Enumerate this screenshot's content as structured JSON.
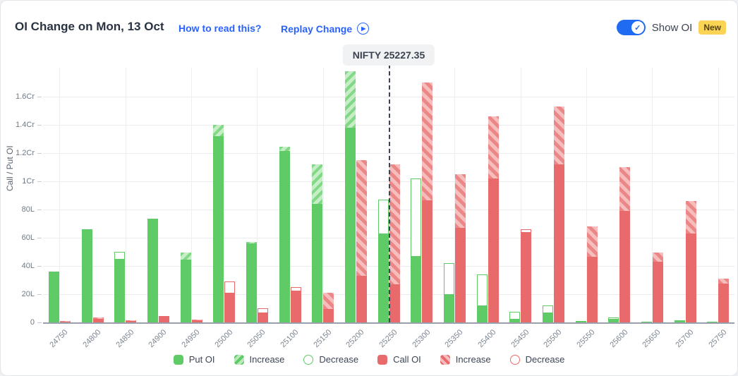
{
  "header": {
    "title": "OI Change on Mon, 13 Oct",
    "how_to_read_label": "How to read this?",
    "replay_label": "Replay Change",
    "play_icon": "play-circle",
    "show_oi_label": "Show OI",
    "show_oi_state": "on",
    "new_badge": "New"
  },
  "nifty_marker": {
    "label": "NIFTY 25227.35",
    "value": 25227.35
  },
  "chart_data": {
    "type": "bar",
    "title": "OI Change on Mon, 13 Oct",
    "ylabel": "Call / Put OI",
    "ytick_labels": [
      "0",
      "20L",
      "40L",
      "60L",
      "80L",
      "1Cr",
      "1.2Cr",
      "1.4Cr",
      "1.6Cr"
    ],
    "ytick_values_lakh": [
      0,
      20,
      40,
      60,
      80,
      100,
      120,
      140,
      160
    ],
    "ylim_lakh": [
      0,
      180
    ],
    "grid": true,
    "legend_position": "bottom",
    "value_unit": "lakh (L); 1Cr = 100L",
    "categories": [
      24750,
      24800,
      24850,
      24900,
      24950,
      25000,
      25050,
      25100,
      25150,
      25200,
      25250,
      25300,
      25350,
      25400,
      25450,
      25500,
      25550,
      25600,
      25650,
      25700,
      25750
    ],
    "series": [
      {
        "name": "Put OI (solid green, with hatched Increase / outlined Decrease tops)",
        "put_oi_lakh": [
          36,
          66,
          45,
          73.5,
          44.5,
          132,
          56,
          121.5,
          84,
          138,
          63,
          47,
          20,
          12,
          2.5,
          7,
          1.2,
          2.5,
          0.7,
          1.5,
          0.4
        ],
        "put_increase_lakh": [
          0,
          0,
          0,
          0,
          5,
          8,
          1,
          3,
          28,
          40,
          0,
          0,
          0,
          0,
          0,
          0,
          0,
          0,
          0,
          0,
          0
        ],
        "put_decrease_lakh": [
          0,
          0,
          5,
          0,
          0,
          0,
          0,
          0,
          0,
          0,
          24,
          55,
          22,
          22,
          5,
          5,
          0,
          1,
          0,
          0,
          0
        ]
      },
      {
        "name": "Call OI (solid red, with hatched Increase / outlined Decrease tops)",
        "call_oi_lakh": [
          0.7,
          2.5,
          1,
          4.5,
          1.5,
          21,
          7,
          22.5,
          9.5,
          33,
          27,
          86.5,
          67,
          102,
          64,
          112,
          46.5,
          79,
          43,
          63,
          27.5
        ],
        "call_increase_lakh": [
          0.5,
          1,
          0.5,
          0,
          0.5,
          0,
          0,
          0,
          11.5,
          82,
          85,
          83.5,
          38,
          44,
          0,
          41,
          21.5,
          31,
          6.5,
          23,
          3.5
        ],
        "call_decrease_lakh": [
          0,
          0,
          0,
          0,
          0,
          8,
          3,
          2.5,
          0,
          0,
          0,
          0,
          0,
          0,
          2,
          0,
          0,
          0,
          0,
          0,
          0
        ]
      }
    ]
  },
  "legend": [
    {
      "label": "Put OI",
      "swatch": "green-solid"
    },
    {
      "label": "Increase",
      "swatch": "green-hatch"
    },
    {
      "label": "Decrease",
      "swatch": "green-outline"
    },
    {
      "label": "Call OI",
      "swatch": "red-solid"
    },
    {
      "label": "Increase",
      "swatch": "red-hatch"
    },
    {
      "label": "Decrease",
      "swatch": "red-outline"
    }
  ],
  "colors": {
    "put_green": "#5fcb66",
    "call_red": "#e96a6a",
    "link_blue": "#2962ff",
    "toggle_blue": "#1f6bf1",
    "new_badge_bg": "#fbd455",
    "nifty_line": "#3d4656",
    "grid": "#e9ebef"
  }
}
